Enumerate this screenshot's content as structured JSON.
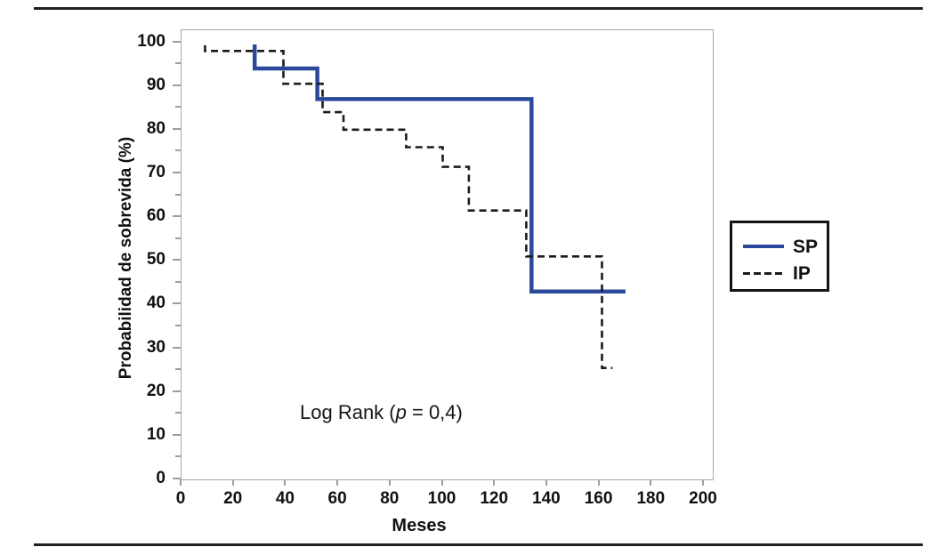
{
  "chart_data": {
    "type": "line",
    "subtype": "kaplan-meier-step",
    "title": "",
    "xlabel": "Meses",
    "ylabel": "Probabilidad de sobrevida (%)",
    "xlim": [
      0,
      200
    ],
    "ylim": [
      0,
      100
    ],
    "x_ticks": [
      0,
      20,
      40,
      60,
      80,
      100,
      120,
      140,
      160,
      180,
      200
    ],
    "y_ticks": [
      0,
      10,
      20,
      30,
      40,
      50,
      60,
      70,
      80,
      90,
      100
    ],
    "y_minor_ticks": [
      5,
      15,
      25,
      35,
      45,
      55,
      65,
      75,
      85,
      95
    ],
    "grid": false,
    "annotation": {
      "prefix": "Log Rank (",
      "italic": "p",
      "suffix": " = 0,4)"
    },
    "legend": {
      "position": "right-outside",
      "entries": [
        {
          "label": "SP",
          "style": "solid",
          "color": "#2c489c"
        },
        {
          "label": "IP",
          "style": "dashed",
          "color": "#1b1b1b"
        }
      ]
    },
    "series": [
      {
        "name": "SP",
        "style": "solid",
        "color": "#2c489c",
        "stroke_width": 4.5,
        "points": [
          [
            28,
            99.5
          ],
          [
            28,
            94
          ],
          [
            52,
            94
          ],
          [
            52,
            87
          ],
          [
            134,
            87
          ],
          [
            134,
            43
          ],
          [
            170,
            43
          ]
        ]
      },
      {
        "name": "IP",
        "style": "dashed",
        "color": "#1b1b1b",
        "stroke_width": 2.6,
        "points": [
          [
            9,
            99.3
          ],
          [
            9,
            98
          ],
          [
            39,
            98
          ],
          [
            39,
            90.5
          ],
          [
            54,
            90.5
          ],
          [
            54,
            84
          ],
          [
            62,
            84
          ],
          [
            62,
            80
          ],
          [
            86,
            80
          ],
          [
            86,
            76
          ],
          [
            100,
            76
          ],
          [
            100,
            71.5
          ],
          [
            110,
            71.5
          ],
          [
            110,
            61.5
          ],
          [
            132,
            61.5
          ],
          [
            132,
            51
          ],
          [
            161,
            51
          ],
          [
            161,
            25.5
          ],
          [
            165,
            25.5
          ]
        ]
      }
    ]
  }
}
